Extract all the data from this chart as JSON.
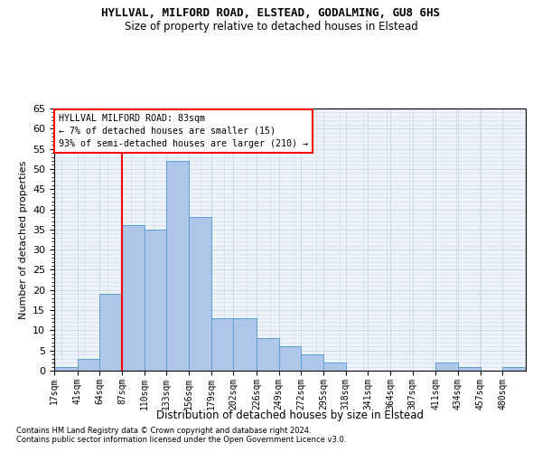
{
  "title1": "HYLLVAL, MILFORD ROAD, ELSTEAD, GODALMING, GU8 6HS",
  "title2": "Size of property relative to detached houses in Elstead",
  "xlabel": "Distribution of detached houses by size in Elstead",
  "ylabel": "Number of detached properties",
  "footnote1": "Contains HM Land Registry data © Crown copyright and database right 2024.",
  "footnote2": "Contains public sector information licensed under the Open Government Licence v3.0.",
  "annotation_title": "HYLLVAL MILFORD ROAD: 83sqm",
  "annotation_line2": "← 7% of detached houses are smaller (15)",
  "annotation_line3": "93% of semi-detached houses are larger (210) →",
  "bar_color": "#aec6e8",
  "bar_edge_color": "#5a9fd4",
  "vline_color": "red",
  "vline_x": 87,
  "bin_edges": [
    17,
    41,
    64,
    87,
    110,
    133,
    156,
    179,
    202,
    226,
    249,
    272,
    295,
    318,
    341,
    364,
    387,
    411,
    434,
    457,
    480
  ],
  "bin_labels": [
    "17sqm",
    "41sqm",
    "64sqm",
    "87sqm",
    "110sqm",
    "133sqm",
    "156sqm",
    "179sqm",
    "202sqm",
    "226sqm",
    "249sqm",
    "272sqm",
    "295sqm",
    "318sqm",
    "341sqm",
    "364sqm",
    "387sqm",
    "411sqm",
    "434sqm",
    "457sqm",
    "480sqm"
  ],
  "bar_heights": [
    1,
    3,
    19,
    36,
    35,
    52,
    38,
    13,
    13,
    8,
    6,
    4,
    2,
    0,
    0,
    0,
    0,
    2,
    1,
    0,
    1
  ],
  "ylim": [
    0,
    65
  ],
  "yticks": [
    0,
    5,
    10,
    15,
    20,
    25,
    30,
    35,
    40,
    45,
    50,
    55,
    60,
    65
  ],
  "grid_color": "#d0d8e8",
  "bg_color": "#eef2fa",
  "fig_width": 6.0,
  "fig_height": 5.0,
  "dpi": 100
}
